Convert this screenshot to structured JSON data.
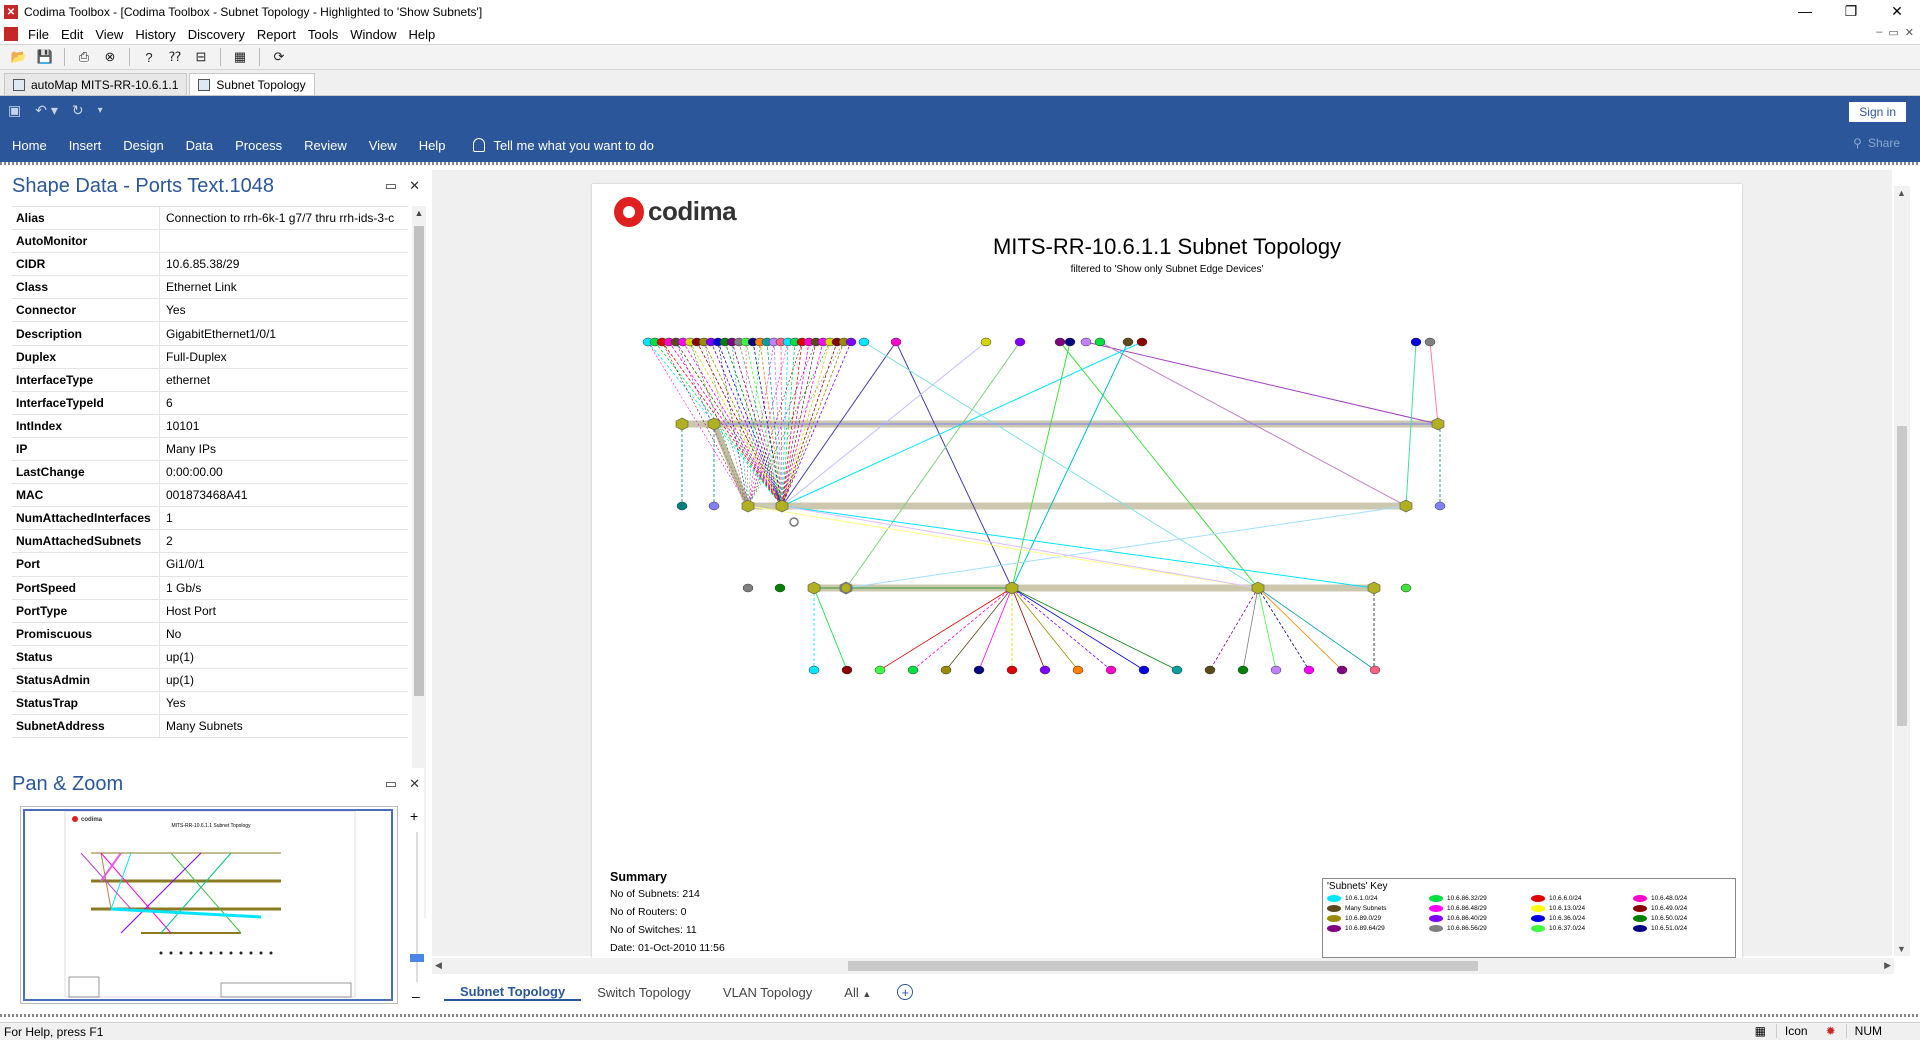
{
  "window": {
    "title": "Codima Toolbox - [Codima Toolbox - Subnet Topology - Highlighted to 'Show Subnets']"
  },
  "menubar": [
    "File",
    "Edit",
    "View",
    "History",
    "Discovery",
    "Report",
    "Tools",
    "Window",
    "Help"
  ],
  "doc_tabs": [
    {
      "label": "autoMap MITS-RR-10.6.1.1"
    },
    {
      "label": "Subnet Topology"
    }
  ],
  "ribbon": {
    "signin": "Sign in",
    "share": "Share",
    "tabs": [
      "Home",
      "Insert",
      "Design",
      "Data",
      "Process",
      "Review",
      "View",
      "Help"
    ],
    "tell_me": "Tell me what you want to do"
  },
  "shape_data": {
    "title": "Shape Data - Ports Text.1048",
    "rows": [
      {
        "key": "Alias",
        "value": "Connection to rrh-6k-1 g7/7 thru rrh-ids-3-c"
      },
      {
        "key": "AutoMonitor",
        "value": ""
      },
      {
        "key": "CIDR",
        "value": "10.6.85.38/29"
      },
      {
        "key": "Class",
        "value": "Ethernet Link"
      },
      {
        "key": "Connector",
        "value": "Yes"
      },
      {
        "key": "Description",
        "value": "GigabitEthernet1/0/1"
      },
      {
        "key": "Duplex",
        "value": "Full-Duplex"
      },
      {
        "key": "InterfaceType",
        "value": "ethernet"
      },
      {
        "key": "InterfaceTypeId",
        "value": "6"
      },
      {
        "key": "IntIndex",
        "value": "10101"
      },
      {
        "key": "IP",
        "value": "Many IPs"
      },
      {
        "key": "LastChange",
        "value": "0:00:00.00"
      },
      {
        "key": "MAC",
        "value": "001873468A41"
      },
      {
        "key": "NumAttachedInterfaces",
        "value": "1"
      },
      {
        "key": "NumAttachedSubnets",
        "value": "2"
      },
      {
        "key": "Port",
        "value": "Gi1/0/1"
      },
      {
        "key": "PortSpeed",
        "value": "1 Gb/s"
      },
      {
        "key": "PortType",
        "value": "Host Port"
      },
      {
        "key": "Promiscuous",
        "value": "No"
      },
      {
        "key": "Status",
        "value": "up(1)"
      },
      {
        "key": "StatusAdmin",
        "value": "up(1)"
      },
      {
        "key": "StatusTrap",
        "value": "Yes"
      },
      {
        "key": "SubnetAddress",
        "value": "Many Subnets"
      }
    ]
  },
  "pan_zoom": {
    "title": "Pan & Zoom",
    "thumb_title": "MITS-RR-10.6.1.1 Subnet Topology"
  },
  "diagram": {
    "logo": "codima",
    "title": "MITS-RR-10.6.1.1 Subnet Topology",
    "subtitle": "filtered to 'Show only Subnet Edge Devices'",
    "summary": {
      "heading": "Summary",
      "lines": [
        "No of Subnets: 214",
        "No of Routers: 0",
        "No of Switches: 11",
        "Date: 01-Oct-2010 11:56"
      ]
    },
    "key": {
      "heading": "'Subnets' Key",
      "items": [
        {
          "label": "10.6.1.0/24",
          "color": "#00e5ff"
        },
        {
          "label": "10.6.86.32/29",
          "color": "#00e040"
        },
        {
          "label": "10.6.6.0/24",
          "color": "#e00000"
        },
        {
          "label": "10.6.48.0/24",
          "color": "#ff00cc"
        },
        {
          "label": "Many Subnets",
          "color": "#5a4a1a"
        },
        {
          "label": "10.6.86.48/29",
          "color": "#ff00ff"
        },
        {
          "label": "10.6.13.0/24",
          "color": "#ffff00"
        },
        {
          "label": "10.6.49.0/24",
          "color": "#8b0000"
        },
        {
          "label": "10.6.89.0/29",
          "color": "#9a8a00"
        },
        {
          "label": "10.6.86.40/29",
          "color": "#8000ff"
        },
        {
          "label": "10.6.36.0/24",
          "color": "#0000e0"
        },
        {
          "label": "10.6.50.0/24",
          "color": "#008000"
        },
        {
          "label": "10.6.89.64/29",
          "color": "#800080"
        },
        {
          "label": "10.6.86.56/29",
          "color": "#808080"
        },
        {
          "label": "10.6.37.0/24",
          "color": "#40ff40"
        },
        {
          "label": "10.6.51.0/24",
          "color": "#000080"
        }
      ]
    }
  },
  "sheet_tabs": [
    "Subnet Topology",
    "Switch Topology",
    "VLAN Topology",
    "All"
  ],
  "status": {
    "help": "For Help, press F1",
    "view": "Icon",
    "num": "NUM"
  },
  "colors": {
    "ribbon": "#2b579a",
    "accent": "#2b579a"
  }
}
